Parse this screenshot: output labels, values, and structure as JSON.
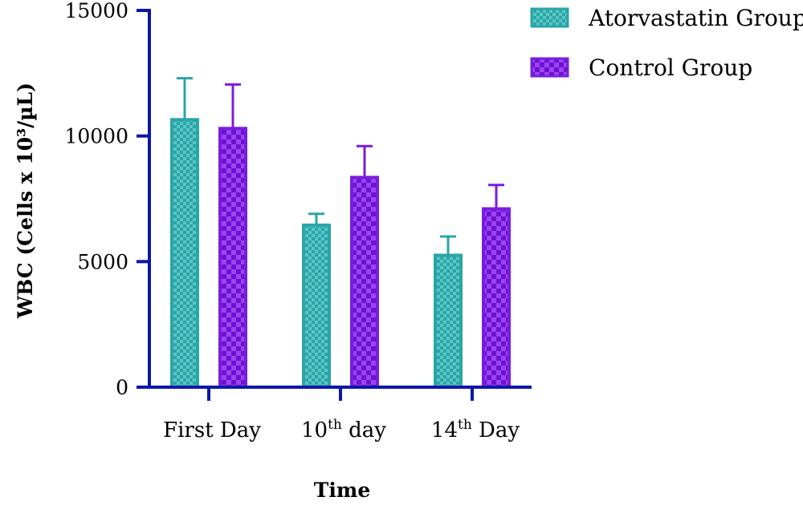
{
  "chart_data": {
    "type": "bar",
    "title": "",
    "xlabel": "Time",
    "ylabel": "WBC (Cells x 10³/µL)",
    "ylim": [
      0,
      15000
    ],
    "yticks": [
      0,
      5000,
      10000,
      15000
    ],
    "grid": false,
    "legend_position": "top-right",
    "categories": [
      {
        "base": "First Day",
        "sup": "",
        "rest": ""
      },
      {
        "base": "10",
        "sup": "th",
        "rest": " day"
      },
      {
        "base": "14",
        "sup": "th",
        "rest": " Day"
      }
    ],
    "series": [
      {
        "name": "Atorvastatin Group",
        "color": "#2aa5a8",
        "pattern": "checker-fine",
        "values": [
          10650,
          6450,
          5250
        ],
        "errors": [
          1650,
          450,
          750
        ]
      },
      {
        "name": "Control Group",
        "color": "#7a1ce0",
        "pattern": "checker-coarse",
        "values": [
          10300,
          8350,
          7100
        ],
        "errors": [
          1750,
          1250,
          950
        ]
      }
    ]
  },
  "colors": {
    "axis": "#0a17a8"
  }
}
